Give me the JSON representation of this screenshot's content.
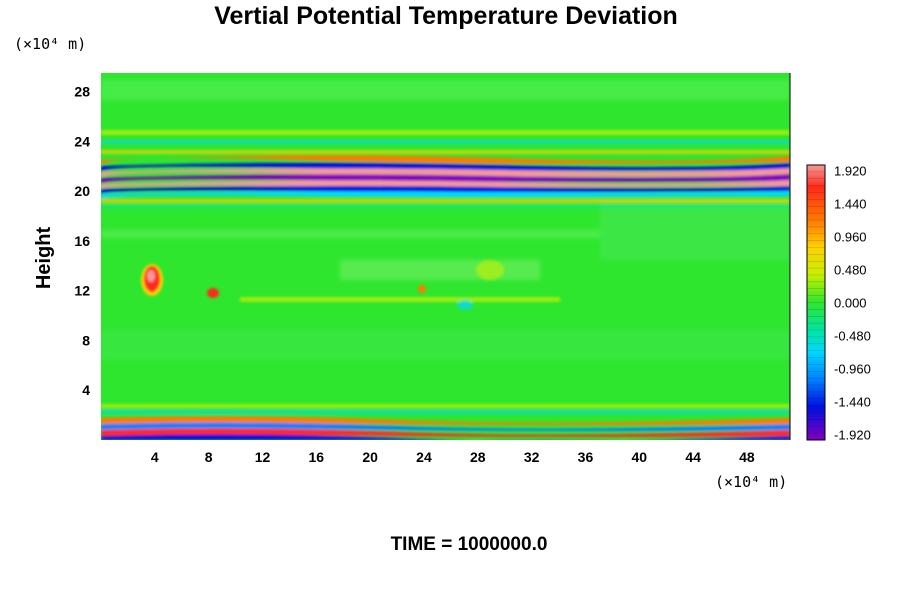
{
  "chart_data": {
    "type": "heatmap",
    "title": "Vertial Potential Temperature Deviation",
    "ylabel": "Height",
    "y_unit_label": "(×10⁴ m)",
    "x_unit_label": "(×10⁴ m)",
    "x_ticks": [
      4,
      8,
      12,
      16,
      20,
      24,
      28,
      32,
      36,
      40,
      44,
      48
    ],
    "y_ticks": [
      4,
      8,
      12,
      16,
      20,
      24,
      28
    ],
    "xlim": [
      0,
      51.2
    ],
    "ylim": [
      0,
      29.5
    ],
    "colorbar": {
      "ticks": [
        "1.920",
        "1.440",
        "0.960",
        "0.480",
        "0.000",
        "-0.480",
        "-0.960",
        "-1.440",
        "-1.920"
      ],
      "range": [
        -2.0,
        2.0
      ]
    },
    "footer": "TIME = 1000000.0"
  },
  "colors": {
    "background_field": "#2ee62e",
    "positive_extreme": "#f08080",
    "negative_extreme": "#8000c0"
  }
}
